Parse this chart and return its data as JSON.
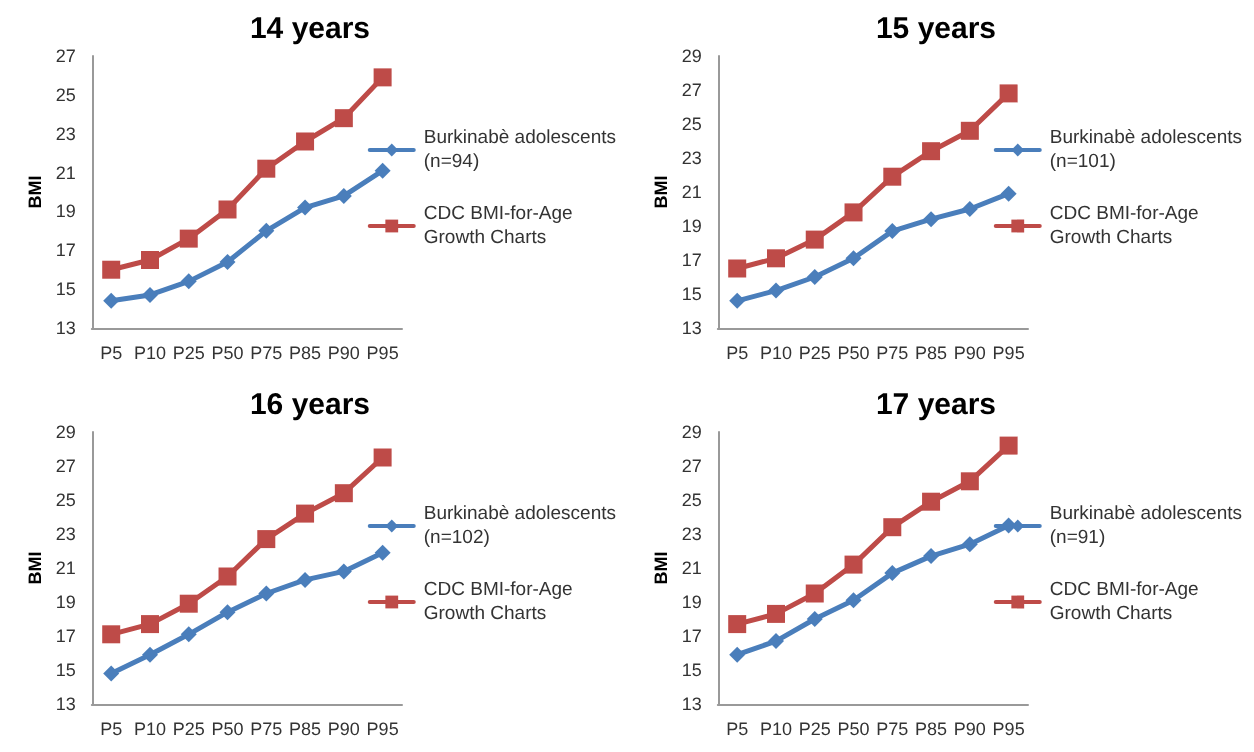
{
  "chart_data": [
    {
      "type": "line",
      "title": "14 years",
      "ylabel": "BMI",
      "categories": [
        "P5",
        "P10",
        "P25",
        "P50",
        "P75",
        "P85",
        "P90",
        "P95"
      ],
      "ylim": [
        13,
        27
      ],
      "yticks": [
        13,
        15,
        17,
        19,
        21,
        23,
        25,
        27
      ],
      "grid": false,
      "legend": "right",
      "line_style": "solid",
      "series": [
        {
          "name": "Burkinabè adolescents\n(n=94)",
          "color": "#4a7ebb",
          "marker": "diamond",
          "values": [
            14.4,
            14.7,
            15.4,
            16.4,
            18.0,
            19.2,
            19.8,
            21.1
          ]
        },
        {
          "name": "CDC BMI-for-Age\nGrowth Charts",
          "color": "#be4b48",
          "marker": "square",
          "values": [
            16.0,
            16.5,
            17.6,
            19.1,
            21.2,
            22.6,
            23.8,
            25.9
          ]
        }
      ]
    },
    {
      "type": "line",
      "title": "15 years",
      "ylabel": "BMI",
      "categories": [
        "P5",
        "P10",
        "P25",
        "P50",
        "P75",
        "P85",
        "P90",
        "P95"
      ],
      "ylim": [
        13,
        29
      ],
      "yticks": [
        13,
        15,
        17,
        19,
        21,
        23,
        25,
        27,
        29
      ],
      "grid": false,
      "legend": "right",
      "line_style": "solid",
      "series": [
        {
          "name": "Burkinabè adolescents\n(n=101)",
          "color": "#4a7ebb",
          "marker": "diamond",
          "values": [
            14.6,
            15.2,
            16.0,
            17.1,
            18.7,
            19.4,
            20.0,
            20.9
          ]
        },
        {
          "name": "CDC BMI-for-Age\nGrowth Charts",
          "color": "#be4b48",
          "marker": "square",
          "values": [
            16.5,
            17.1,
            18.2,
            19.8,
            21.9,
            23.4,
            24.6,
            26.8
          ]
        }
      ]
    },
    {
      "type": "line",
      "title": "16 years",
      "ylabel": "BMI",
      "categories": [
        "P5",
        "P10",
        "P25",
        "P50",
        "P75",
        "P85",
        "P90",
        "P95"
      ],
      "ylim": [
        13,
        29
      ],
      "yticks": [
        13,
        15,
        17,
        19,
        21,
        23,
        25,
        27,
        29
      ],
      "grid": false,
      "legend": "right",
      "line_style": "solid",
      "series": [
        {
          "name": "Burkinabè adolescents\n(n=102)",
          "color": "#4a7ebb",
          "marker": "diamond",
          "values": [
            14.8,
            15.9,
            17.1,
            18.4,
            19.5,
            20.3,
            20.8,
            21.9
          ]
        },
        {
          "name": "CDC BMI-for-Age\nGrowth Charts",
          "color": "#be4b48",
          "marker": "square",
          "values": [
            17.1,
            17.7,
            18.9,
            20.5,
            22.7,
            24.2,
            25.4,
            27.5
          ]
        }
      ]
    },
    {
      "type": "line",
      "title": "17 years",
      "ylabel": "BMI",
      "categories": [
        "P5",
        "P10",
        "P25",
        "P50",
        "P75",
        "P85",
        "P90",
        "P95"
      ],
      "ylim": [
        13,
        29
      ],
      "yticks": [
        13,
        15,
        17,
        19,
        21,
        23,
        25,
        27,
        29
      ],
      "grid": false,
      "legend": "right",
      "line_style": "solid",
      "series": [
        {
          "name": "Burkinabè adolescents\n(n=91)",
          "color": "#4a7ebb",
          "marker": "diamond",
          "values": [
            15.9,
            16.7,
            18.0,
            19.1,
            20.7,
            21.7,
            22.4,
            23.5
          ]
        },
        {
          "name": "CDC BMI-for-Age\nGrowth Charts",
          "color": "#be4b48",
          "marker": "square",
          "values": [
            17.7,
            18.3,
            19.5,
            21.2,
            23.4,
            24.9,
            26.1,
            28.2
          ]
        }
      ]
    }
  ]
}
